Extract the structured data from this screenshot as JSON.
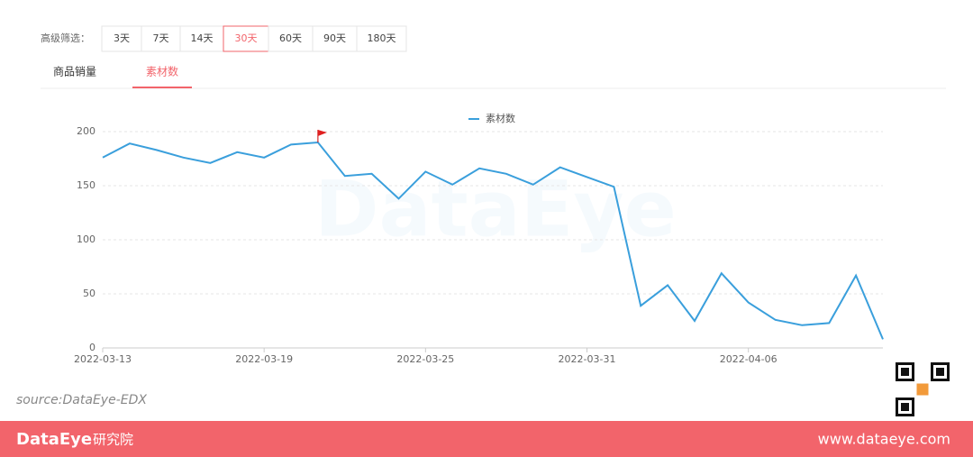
{
  "filter": {
    "label": "高级筛选：",
    "options": [
      "3天",
      "7天",
      "14天",
      "30天",
      "60天",
      "90天",
      "180天"
    ],
    "active": 3
  },
  "tabs": {
    "items": [
      "商品销量",
      "素材数"
    ],
    "active": 1
  },
  "watermark": "DataEye",
  "source": "source:DataEye-EDX",
  "footer": {
    "brand": "DataEye",
    "brand_suffix": "研究院",
    "url": "www.dataeye.com"
  },
  "chart_data": {
    "type": "line",
    "x": [
      "2022-03-13",
      "2022-03-14",
      "2022-03-15",
      "2022-03-16",
      "2022-03-17",
      "2022-03-18",
      "2022-03-19",
      "2022-03-20",
      "2022-03-21",
      "2022-03-22",
      "2022-03-23",
      "2022-03-24",
      "2022-03-25",
      "2022-03-26",
      "2022-03-27",
      "2022-03-28",
      "2022-03-29",
      "2022-03-30",
      "2022-03-31",
      "2022-04-01",
      "2022-04-02",
      "2022-04-03",
      "2022-04-04",
      "2022-04-05",
      "2022-04-06",
      "2022-04-07",
      "2022-04-08",
      "2022-04-09",
      "2022-04-10",
      "2022-04-11"
    ],
    "xlim": [
      "2022-03-13",
      "2022-04-11"
    ],
    "xticks": [
      "2022-03-13",
      "2022-03-19",
      "2022-03-25",
      "2022-03-31",
      "2022-04-06"
    ],
    "series": [
      {
        "name": "素材数",
        "color": "#3a9fdc",
        "values": [
          176,
          189,
          183,
          176,
          171,
          181,
          176,
          188,
          190,
          159,
          161,
          138,
          163,
          151,
          166,
          161,
          151,
          167,
          158,
          149,
          39,
          58,
          25,
          69,
          42,
          26,
          21,
          23,
          67,
          8
        ]
      }
    ],
    "ylim": [
      0,
      200
    ],
    "yticks": [
      0,
      50,
      100,
      150,
      200
    ],
    "grid": true
  }
}
